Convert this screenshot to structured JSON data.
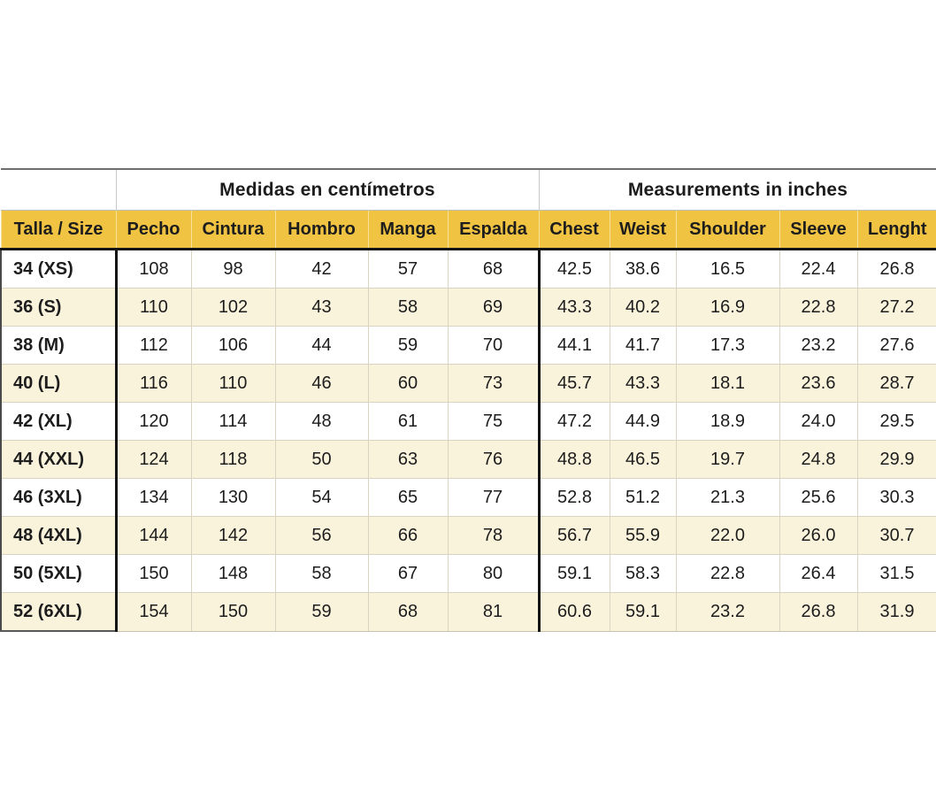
{
  "colors": {
    "header_yellow": "#f0c342",
    "row_cream": "#faf3dc",
    "row_white": "#ffffff",
    "thick_border": "#141414",
    "light_grid": "#d9d4c2",
    "text": "#1d1d1d"
  },
  "chart_data": {
    "type": "table",
    "title_cm": "Medidas en centímetros",
    "title_in": "Measurements in inches",
    "corner_header": "Talla / Size",
    "cm_columns": [
      "Pecho",
      "Cintura",
      "Hombro",
      "Manga",
      "Espalda"
    ],
    "in_columns": [
      "Chest",
      "Weist",
      "Shoulder",
      "Sleeve",
      "Lenght"
    ],
    "rows": [
      {
        "size": "34 (XS)",
        "cm": [
          "108",
          "98",
          "42",
          "57",
          "68"
        ],
        "in": [
          "42.5",
          "38.6",
          "16.5",
          "22.4",
          "26.8"
        ]
      },
      {
        "size": "36 (S)",
        "cm": [
          "110",
          "102",
          "43",
          "58",
          "69"
        ],
        "in": [
          "43.3",
          "40.2",
          "16.9",
          "22.8",
          "27.2"
        ]
      },
      {
        "size": "38 (M)",
        "cm": [
          "112",
          "106",
          "44",
          "59",
          "70"
        ],
        "in": [
          "44.1",
          "41.7",
          "17.3",
          "23.2",
          "27.6"
        ]
      },
      {
        "size": "40 (L)",
        "cm": [
          "116",
          "110",
          "46",
          "60",
          "73"
        ],
        "in": [
          "45.7",
          "43.3",
          "18.1",
          "23.6",
          "28.7"
        ]
      },
      {
        "size": "42 (XL)",
        "cm": [
          "120",
          "114",
          "48",
          "61",
          "75"
        ],
        "in": [
          "47.2",
          "44.9",
          "18.9",
          "24.0",
          "29.5"
        ]
      },
      {
        "size": "44 (XXL)",
        "cm": [
          "124",
          "118",
          "50",
          "63",
          "76"
        ],
        "in": [
          "48.8",
          "46.5",
          "19.7",
          "24.8",
          "29.9"
        ]
      },
      {
        "size": "46 (3XL)",
        "cm": [
          "134",
          "130",
          "54",
          "65",
          "77"
        ],
        "in": [
          "52.8",
          "51.2",
          "21.3",
          "25.6",
          "30.3"
        ]
      },
      {
        "size": "48 (4XL)",
        "cm": [
          "144",
          "142",
          "56",
          "66",
          "78"
        ],
        "in": [
          "56.7",
          "55.9",
          "22.0",
          "26.0",
          "30.7"
        ]
      },
      {
        "size": "50 (5XL)",
        "cm": [
          "150",
          "148",
          "58",
          "67",
          "80"
        ],
        "in": [
          "59.1",
          "58.3",
          "22.8",
          "26.4",
          "31.5"
        ]
      },
      {
        "size": "52 (6XL)",
        "cm": [
          "154",
          "150",
          "59",
          "68",
          "81"
        ],
        "in": [
          "60.6",
          "59.1",
          "23.2",
          "26.8",
          "31.9"
        ]
      }
    ]
  }
}
